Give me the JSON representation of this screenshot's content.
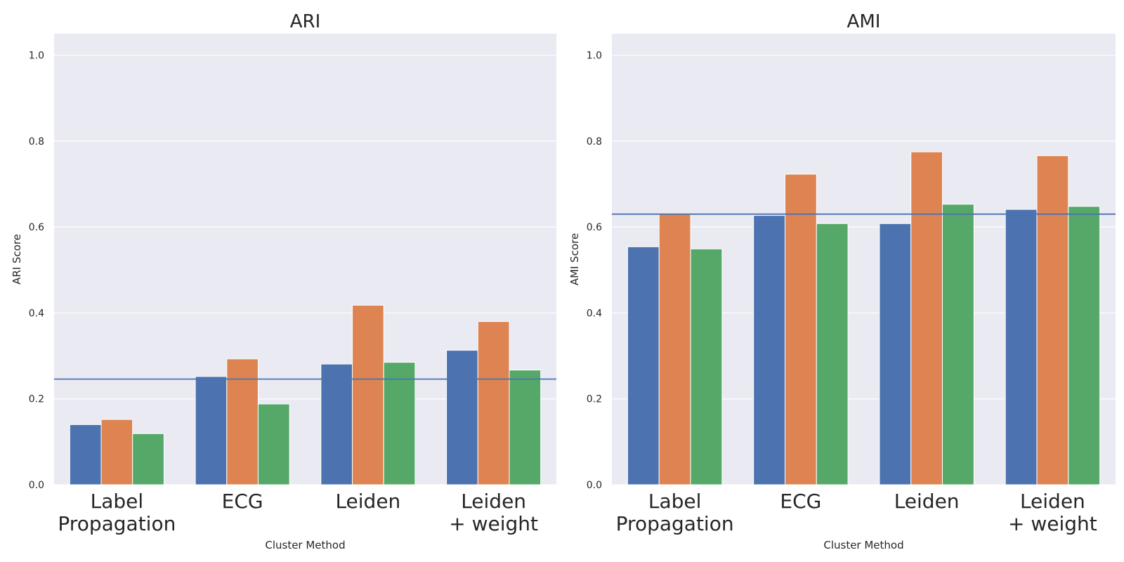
{
  "colors": {
    "series": [
      "#4c72b0",
      "#dd8452",
      "#55a868"
    ],
    "reference_line": "#4c72b0",
    "plot_background": "#eaeaf2"
  },
  "chart_data": [
    {
      "type": "bar",
      "title": "ARI",
      "xlabel": "Cluster Method",
      "ylabel": "ARI Score",
      "ylim": [
        0,
        1.05
      ],
      "yticks": [
        "0.0",
        "0.2",
        "0.4",
        "0.6",
        "0.8",
        "1.0"
      ],
      "categories": [
        [
          "Label",
          "Propagation"
        ],
        [
          "ECG"
        ],
        [
          "Leiden"
        ],
        [
          "Leiden",
          "+ weight"
        ]
      ],
      "series": [
        {
          "values": [
            0.14,
            0.252,
            0.281,
            0.313
          ]
        },
        {
          "values": [
            0.152,
            0.293,
            0.418,
            0.38
          ]
        },
        {
          "values": [
            0.119,
            0.188,
            0.285,
            0.267
          ]
        }
      ],
      "reference_line": 0.246,
      "grid": true,
      "legend": false
    },
    {
      "type": "bar",
      "title": "AMI",
      "xlabel": "Cluster Method",
      "ylabel": "AMI Score",
      "ylim": [
        0,
        1.05
      ],
      "yticks": [
        "0.0",
        "0.2",
        "0.4",
        "0.6",
        "0.8",
        "1.0"
      ],
      "categories": [
        [
          "Label",
          "Propagation"
        ],
        [
          "ECG"
        ],
        [
          "Leiden"
        ],
        [
          "Leiden",
          "+ weight"
        ]
      ],
      "series": [
        {
          "values": [
            0.554,
            0.627,
            0.608,
            0.641
          ]
        },
        {
          "values": [
            0.63,
            0.723,
            0.775,
            0.766
          ]
        },
        {
          "values": [
            0.549,
            0.608,
            0.653,
            0.648
          ]
        }
      ],
      "reference_line": 0.63,
      "grid": true,
      "legend": false
    }
  ]
}
